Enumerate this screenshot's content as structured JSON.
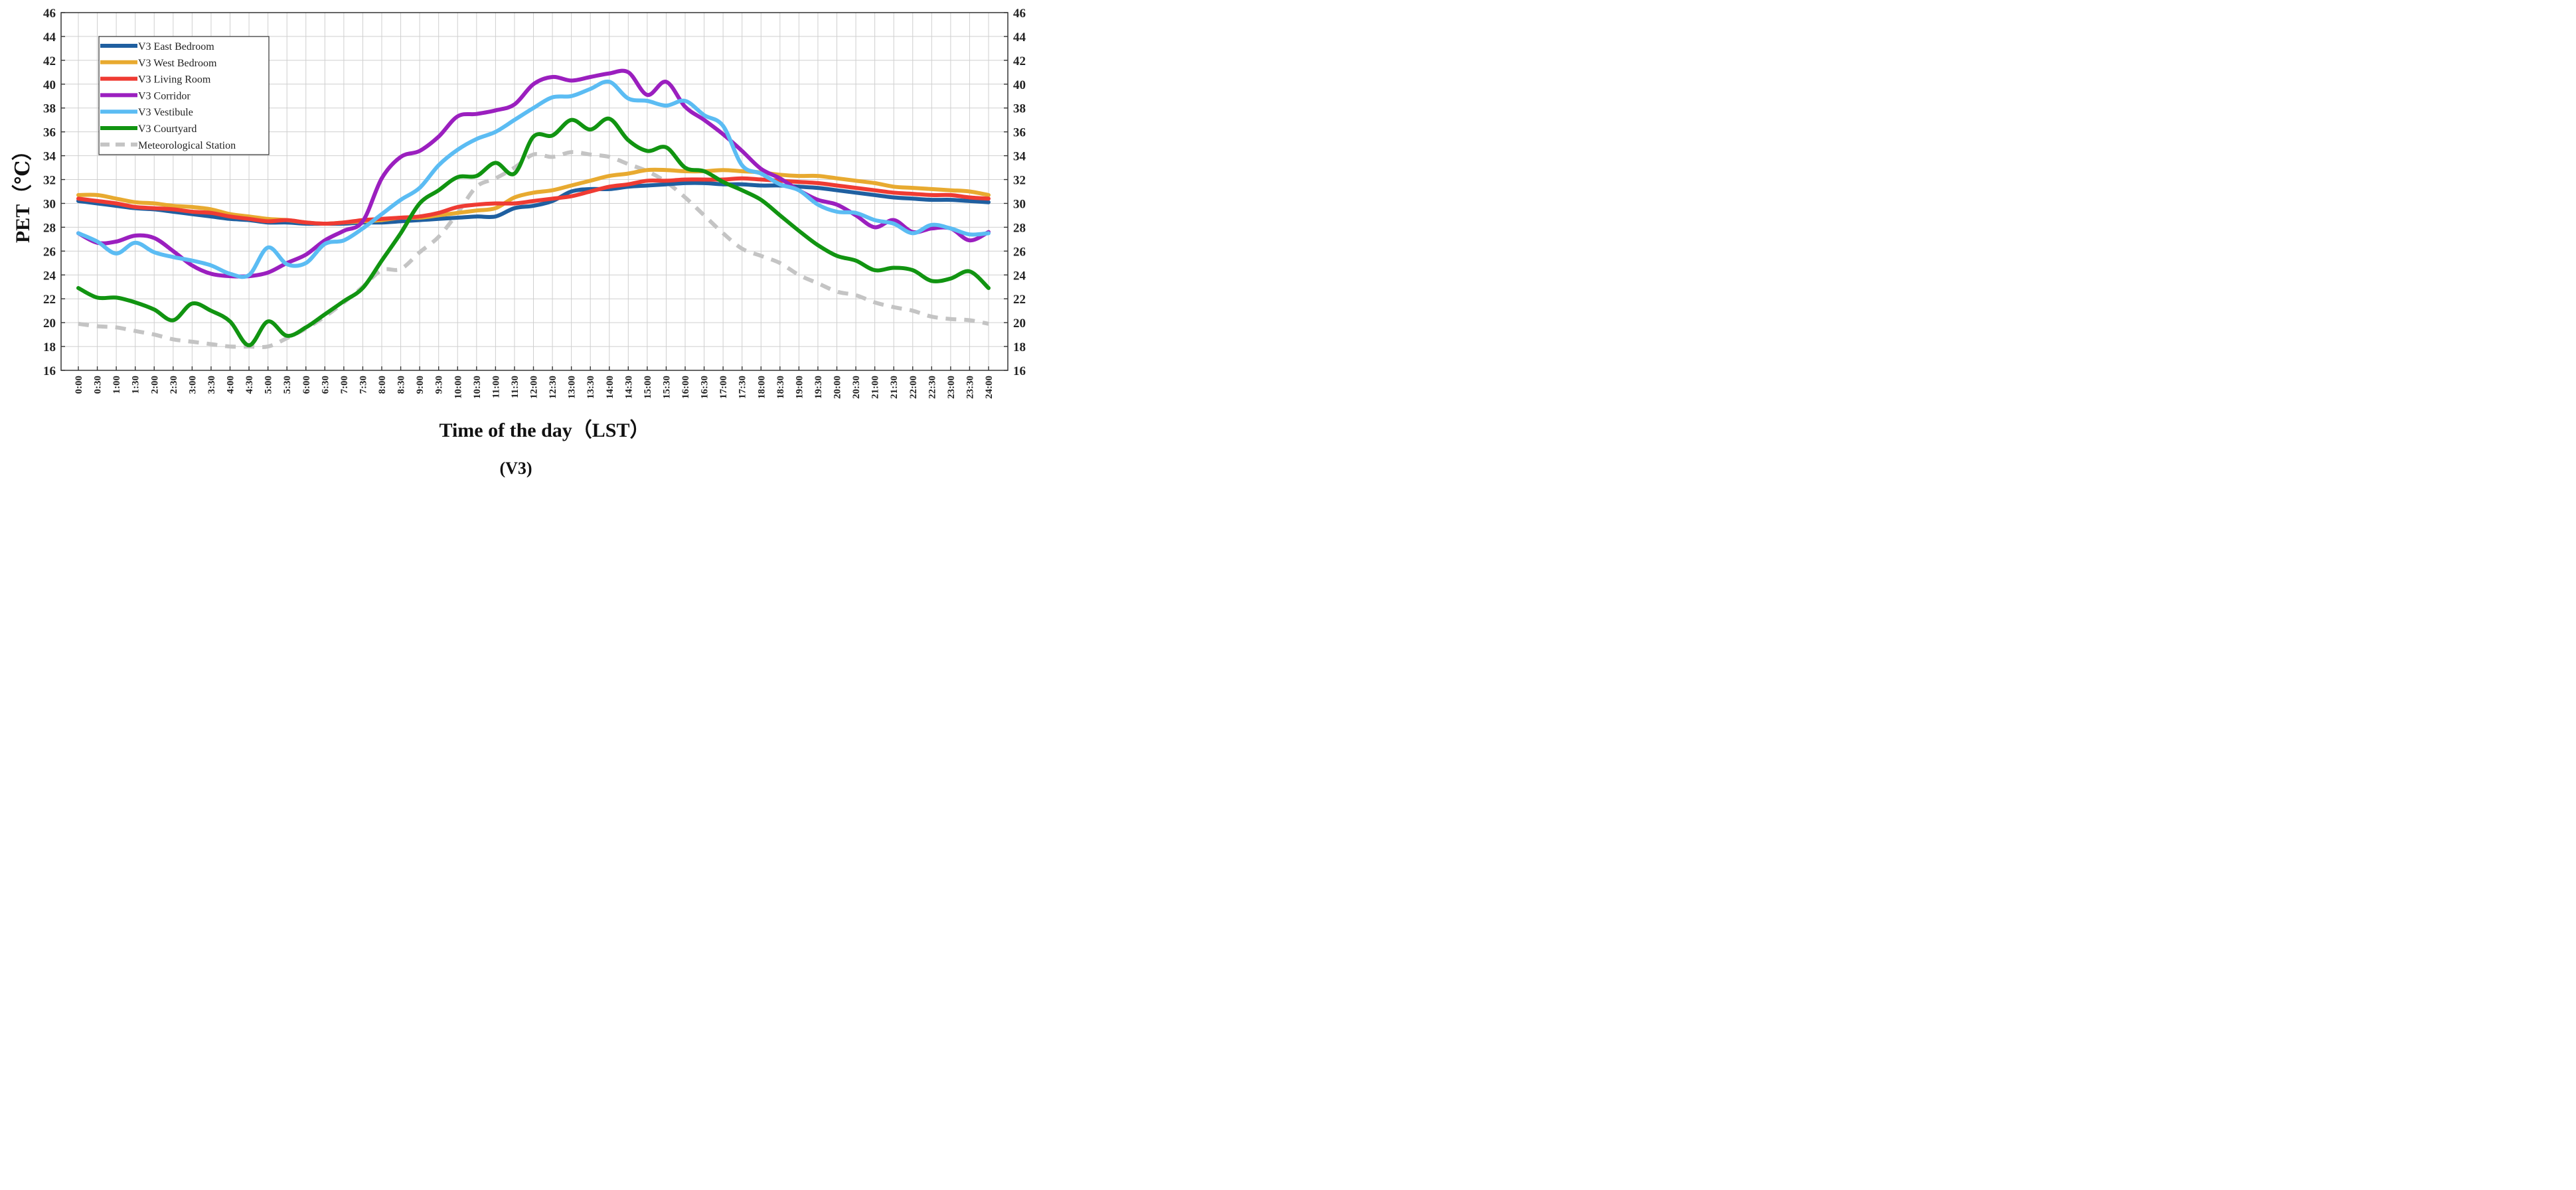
{
  "chart_data": {
    "type": "line",
    "title": "",
    "caption": "(V3)",
    "xlabel": "Time of the day（LST）",
    "ylabel": "PET（℃）",
    "ylim": [
      16,
      46
    ],
    "yticks": [
      16,
      18,
      20,
      22,
      24,
      26,
      28,
      30,
      32,
      34,
      36,
      38,
      40,
      42,
      44,
      46
    ],
    "grid": true,
    "legend_position": "top-left",
    "categories": [
      "0:00",
      "0:30",
      "1:00",
      "1:30",
      "2:00",
      "2:30",
      "3:00",
      "3:30",
      "4:00",
      "4:30",
      "5:00",
      "5:30",
      "6:00",
      "6:30",
      "7:00",
      "7:30",
      "8:00",
      "8:30",
      "9:00",
      "9:30",
      "10:00",
      "10:30",
      "11:00",
      "11:30",
      "12:00",
      "12:30",
      "13:00",
      "13:30",
      "14:00",
      "14:30",
      "15:00",
      "15:30",
      "16:00",
      "16:30",
      "17:00",
      "17:30",
      "18:00",
      "18:30",
      "19:00",
      "19:30",
      "20:00",
      "20:30",
      "21:00",
      "21:30",
      "22:00",
      "22:30",
      "23:00",
      "23:30",
      "24:00"
    ],
    "series": [
      {
        "name": "V3 East Bedroom",
        "color": "#1f5fa0",
        "dashed": false,
        "values": [
          30.2,
          30.0,
          29.8,
          29.6,
          29.5,
          29.3,
          29.1,
          28.9,
          28.7,
          28.6,
          28.4,
          28.4,
          28.3,
          28.3,
          28.3,
          28.4,
          28.4,
          28.5,
          28.6,
          28.7,
          28.8,
          28.9,
          28.9,
          29.6,
          29.8,
          30.2,
          31.0,
          31.2,
          31.2,
          31.4,
          31.5,
          31.6,
          31.7,
          31.7,
          31.6,
          31.6,
          31.5,
          31.5,
          31.4,
          31.3,
          31.1,
          30.9,
          30.7,
          30.5,
          30.4,
          30.3,
          30.3,
          30.2,
          30.1
        ]
      },
      {
        "name": "V3 West Bedroom",
        "color": "#e8aa30",
        "dashed": false,
        "values": [
          30.7,
          30.7,
          30.4,
          30.1,
          30.0,
          29.8,
          29.7,
          29.5,
          29.1,
          28.9,
          28.7,
          28.6,
          28.4,
          28.3,
          28.4,
          28.5,
          28.6,
          28.8,
          28.8,
          29.0,
          29.2,
          29.4,
          29.6,
          30.5,
          30.9,
          31.1,
          31.5,
          31.9,
          32.3,
          32.5,
          32.8,
          32.8,
          32.7,
          32.7,
          32.8,
          32.7,
          32.6,
          32.4,
          32.3,
          32.3,
          32.1,
          31.9,
          31.7,
          31.4,
          31.3,
          31.2,
          31.1,
          31.0,
          30.7
        ]
      },
      {
        "name": "V3 Living Room",
        "color": "#ef3b33",
        "dashed": false,
        "values": [
          30.4,
          30.2,
          30.0,
          29.7,
          29.6,
          29.5,
          29.3,
          29.2,
          28.9,
          28.7,
          28.5,
          28.6,
          28.4,
          28.3,
          28.4,
          28.6,
          28.7,
          28.8,
          28.9,
          29.2,
          29.7,
          29.9,
          30.0,
          30.0,
          30.2,
          30.4,
          30.6,
          31.0,
          31.4,
          31.6,
          31.9,
          31.9,
          32.0,
          32.0,
          32.0,
          32.1,
          32.0,
          31.9,
          31.8,
          31.7,
          31.5,
          31.3,
          31.1,
          30.9,
          30.8,
          30.7,
          30.7,
          30.5,
          30.4
        ]
      },
      {
        "name": "V3 Corridor",
        "color": "#9b1fbf",
        "dashed": false,
        "values": [
          27.5,
          26.7,
          26.8,
          27.3,
          27.1,
          26.0,
          24.8,
          24.1,
          23.9,
          23.9,
          24.2,
          25.0,
          25.7,
          26.9,
          27.7,
          28.5,
          32.1,
          33.9,
          34.4,
          35.6,
          37.3,
          37.5,
          37.8,
          38.3,
          40.0,
          40.6,
          40.3,
          40.6,
          40.9,
          41.0,
          39.1,
          40.2,
          38.1,
          37.0,
          35.8,
          34.4,
          32.9,
          32.1,
          31.1,
          30.3,
          29.9,
          29.0,
          28.0,
          28.6,
          27.6,
          27.9,
          27.9,
          26.9,
          27.6
        ]
      },
      {
        "name": "V3 Vestibule",
        "color": "#5bbcf3",
        "dashed": false,
        "values": [
          27.5,
          26.8,
          25.8,
          26.7,
          25.9,
          25.5,
          25.2,
          24.8,
          24.1,
          24.0,
          26.3,
          24.9,
          25.0,
          26.6,
          26.9,
          27.9,
          29.1,
          30.3,
          31.3,
          33.2,
          34.5,
          35.4,
          36.0,
          37.0,
          38.0,
          38.9,
          39.0,
          39.6,
          40.2,
          38.8,
          38.6,
          38.2,
          38.6,
          37.4,
          36.5,
          33.2,
          32.5,
          31.6,
          31.1,
          29.9,
          29.3,
          29.2,
          28.6,
          28.3,
          27.5,
          28.2,
          27.9,
          27.4,
          27.5
        ]
      },
      {
        "name": "V3 Courtyard",
        "color": "#119411",
        "dashed": false,
        "values": [
          22.9,
          22.1,
          22.1,
          21.7,
          21.1,
          20.2,
          21.6,
          21.0,
          20.1,
          18.1,
          20.1,
          18.9,
          19.6,
          20.7,
          21.8,
          22.9,
          25.2,
          27.5,
          30.0,
          31.1,
          32.2,
          32.3,
          33.4,
          32.5,
          35.6,
          35.7,
          37.0,
          36.2,
          37.1,
          35.3,
          34.4,
          34.7,
          33.0,
          32.7,
          31.8,
          31.1,
          30.3,
          29.0,
          27.7,
          26.5,
          25.6,
          25.2,
          24.4,
          24.6,
          24.4,
          23.5,
          23.7,
          24.3,
          22.9
        ]
      },
      {
        "name": "Meteorological Station",
        "color": "#c4c4c4",
        "dashed": true,
        "values": [
          19.9,
          19.7,
          19.6,
          19.3,
          19.0,
          18.6,
          18.4,
          18.2,
          18.0,
          18.0,
          18.0,
          18.7,
          19.5,
          20.5,
          21.7,
          23.0,
          24.4,
          24.5,
          25.9,
          27.2,
          29.2,
          31.4,
          32.1,
          33.0,
          34.1,
          33.9,
          34.3,
          34.1,
          33.9,
          33.3,
          32.7,
          31.8,
          30.5,
          29.0,
          27.5,
          26.2,
          25.6,
          25.0,
          24.0,
          23.3,
          22.6,
          22.3,
          21.7,
          21.3,
          21.0,
          20.5,
          20.3,
          20.2,
          19.9
        ]
      }
    ]
  }
}
